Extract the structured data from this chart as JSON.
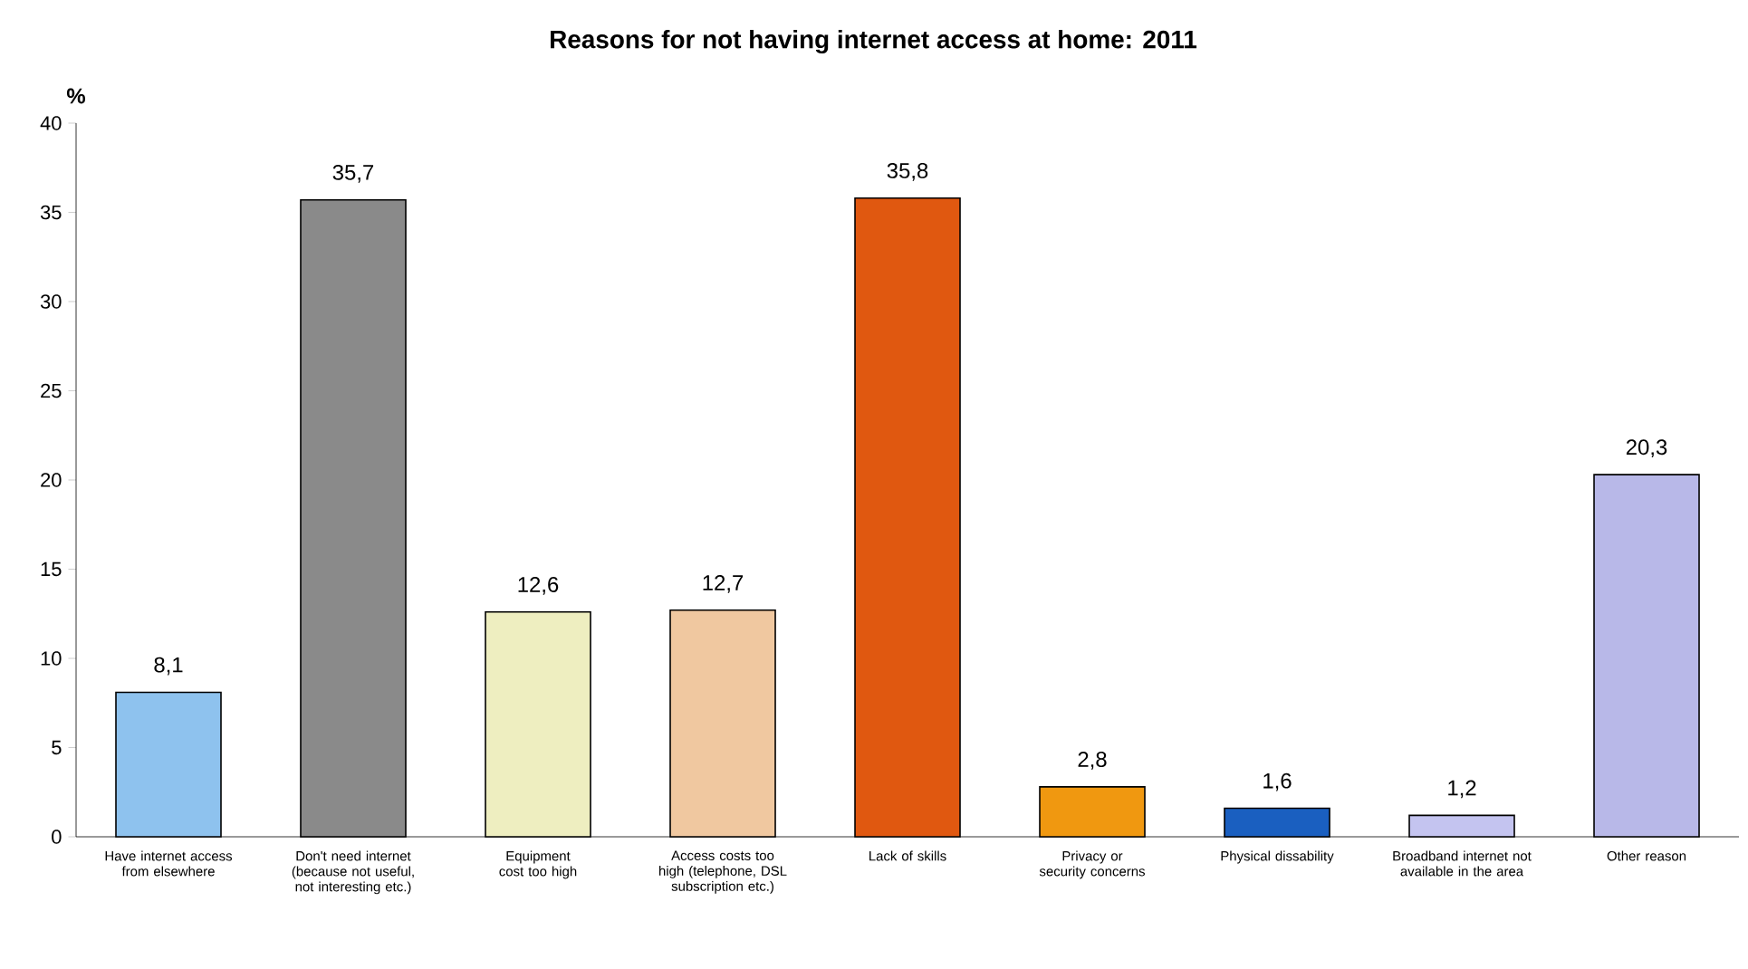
{
  "chart_data": {
    "type": "bar",
    "title": "Reasons for not having internet access at home: 2011",
    "ylabel": "%",
    "categories": [
      "Have internet access from elsewhere",
      "Don't need internet (because not useful, not interesting etc.)",
      "Equipment cost too high",
      "Access costs too high (telephone, DSL subscription etc.)",
      "Lack of skills",
      "Privacy or security concerns",
      "Physical dissability",
      "Broadband internet not available in the area",
      "Other reason"
    ],
    "values": [
      8.1,
      35.7,
      12.6,
      12.7,
      35.8,
      2.8,
      1.6,
      1.2,
      20.3
    ],
    "value_labels": [
      "8,1",
      "35,7",
      "12,6",
      "12,7",
      "35,8",
      "2,8",
      "1,6",
      "1,2",
      "20,3"
    ],
    "colors": [
      "#8ec2ee",
      "#8a8a8a",
      "#eeeec0",
      "#f0c8a0",
      "#e05810",
      "#f09810",
      "#1a5fc0",
      "#c4c4f0",
      "#b8b8e8"
    ],
    "ylim": [
      0,
      40
    ],
    "yticks": [
      0,
      5,
      10,
      15,
      20,
      25,
      30,
      35,
      40
    ],
    "grid": false
  }
}
